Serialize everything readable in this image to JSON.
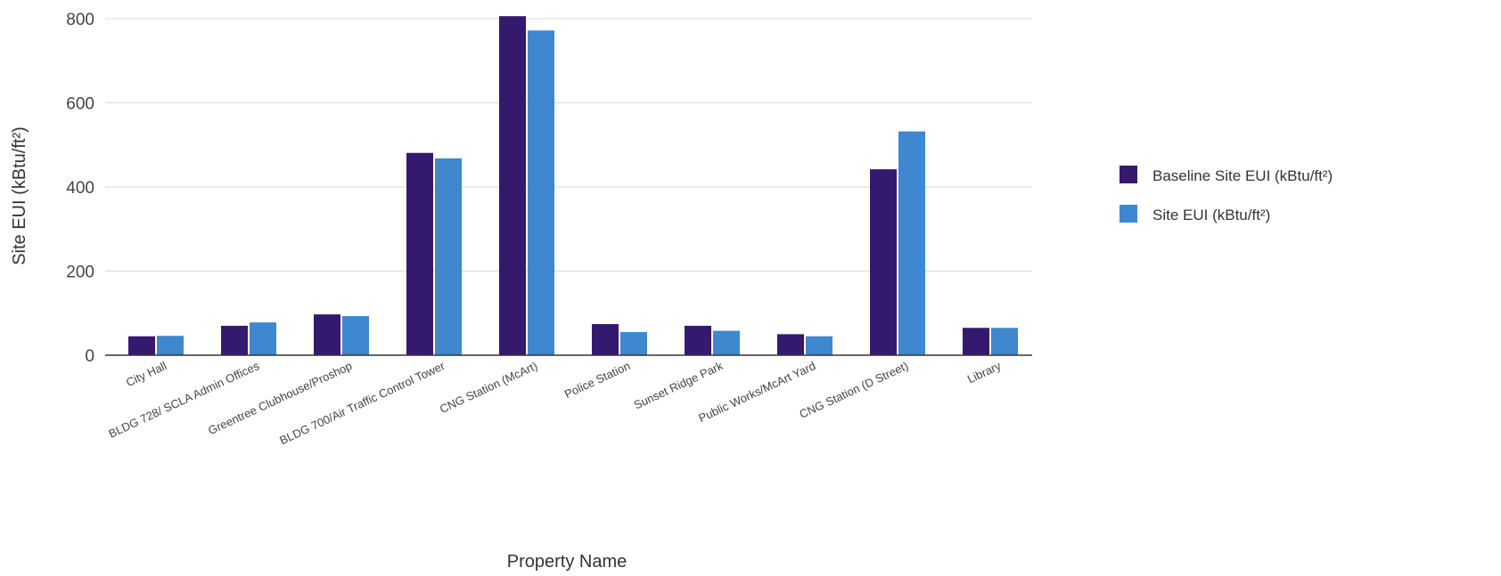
{
  "chart_data": {
    "type": "bar",
    "xlabel": "Property Name",
    "ylabel": "Site EUI (kBtu/ft²)",
    "ylim": [
      0,
      800
    ],
    "yticks": [
      0,
      200,
      400,
      600,
      800
    ],
    "grid": true,
    "legend_position": "right",
    "categories": [
      "City Hall",
      "BLDG 728/ SCLA Admin Offices",
      "Greentree Clubhouse/Proshop",
      "BLDG 700/Air Traffic Control Tower",
      "CNG Station (McArt)",
      "Police Station",
      "Sunset Ridge Park",
      "Public Works/McArt Yard",
      "CNG Station (D Street)",
      "Library"
    ],
    "series": [
      {
        "name": "Baseline Site EUI (kBtu/ft²)",
        "color": "#35196e",
        "values": [
          45,
          70,
          97,
          481,
          806,
          74,
          70,
          50,
          442,
          65
        ]
      },
      {
        "name": "Site EUI (kBtu/ft²)",
        "color": "#3f87cf",
        "values": [
          46,
          78,
          93,
          468,
          772,
          55,
          58,
          45,
          532,
          65
        ]
      }
    ]
  }
}
